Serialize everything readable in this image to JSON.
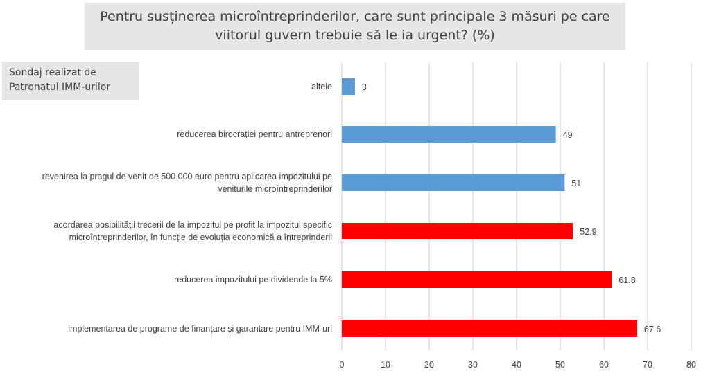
{
  "title": "Pentru susținerea microîntreprinderilor, care sunt principale 3 măsuri pe care viitorul guvern trebuie să le ia urgent? (%)",
  "source_note": "Sondaj realizat de Patronatul IMM-urilor",
  "colors": {
    "blue": "#5b9bd5",
    "red": "#ff0000",
    "grid": "#d9d9d9",
    "text": "#404040"
  },
  "chart_data": {
    "type": "bar",
    "orientation": "horizontal",
    "title": "Pentru susținerea microîntreprinderilor, care sunt principale 3 măsuri pe care viitorul guvern trebuie să le ia urgent? (%)",
    "categories": [
      {
        "lines": [
          "altele"
        ],
        "value": 3,
        "label": "3",
        "color": "#5b9bd5"
      },
      {
        "lines": [
          "reducerea birocrației pentru antreprenori"
        ],
        "value": 49,
        "label": "49",
        "color": "#5b9bd5"
      },
      {
        "lines": [
          "revenirea la pragul de venit de 500.000 euro pentru aplicarea impozitului pe",
          "veniturile microîntreprinderilor"
        ],
        "value": 51,
        "label": "51",
        "color": "#5b9bd5"
      },
      {
        "lines": [
          "acordarea posibilității trecerii de la impozitul pe profit la impozitul specific",
          "microîntreprinderilor, în funcție de evoluția economică a întreprinderii"
        ],
        "value": 52.9,
        "label": "52.9",
        "color": "#ff0000"
      },
      {
        "lines": [
          "reducerea impozitului pe dividende la 5%"
        ],
        "value": 61.8,
        "label": "61.8",
        "color": "#ff0000"
      },
      {
        "lines": [
          "implementarea de programe de finanțare și garantare pentru IMM-uri"
        ],
        "value": 67.6,
        "label": "67.6",
        "color": "#ff0000"
      }
    ],
    "xlim": [
      0,
      80
    ],
    "xticks": [
      "0",
      "10",
      "20",
      "30",
      "40",
      "50",
      "60",
      "70",
      "80"
    ],
    "grid": true,
    "legend": "none"
  }
}
